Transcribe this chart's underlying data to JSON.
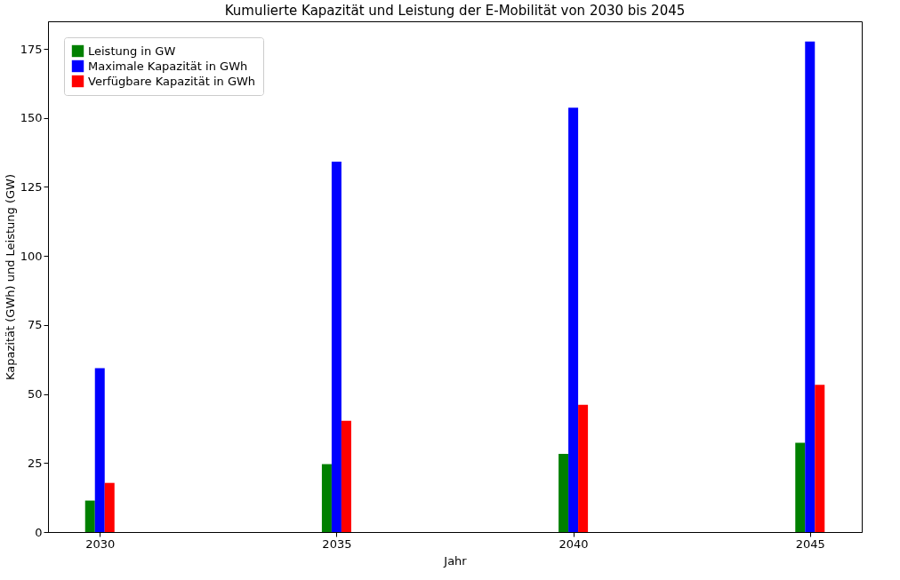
{
  "chart_data": {
    "type": "bar",
    "title": "Kumulierte Kapazität und Leistung der E-Mobilität von 2030 bis 2045",
    "xlabel": "Jahr",
    "ylabel": "Kapazität (GWh) und Leistung (GW)",
    "x": [
      2030,
      2035,
      2040,
      2045
    ],
    "xlim": [
      2029,
      2046
    ],
    "xticks": [
      2030,
      2035,
      2040,
      2045
    ],
    "ylim": [
      0,
      185
    ],
    "yticks": [
      0,
      25,
      50,
      75,
      100,
      125,
      150,
      175
    ],
    "grid": false,
    "legend": "top left",
    "series": [
      {
        "name": "Leistung in GW",
        "color": "#008000",
        "values": [
          11.4,
          24.6,
          28.3,
          32.3
        ]
      },
      {
        "name": "Maximale Kapazität in GWh",
        "color": "#0000ff",
        "values": [
          59.4,
          134.2,
          153.7,
          177.7
        ]
      },
      {
        "name": "Verfügbare Kapazität in GWh",
        "color": "#ff0000",
        "values": [
          17.8,
          40.3,
          46.1,
          53.3
        ]
      }
    ]
  }
}
